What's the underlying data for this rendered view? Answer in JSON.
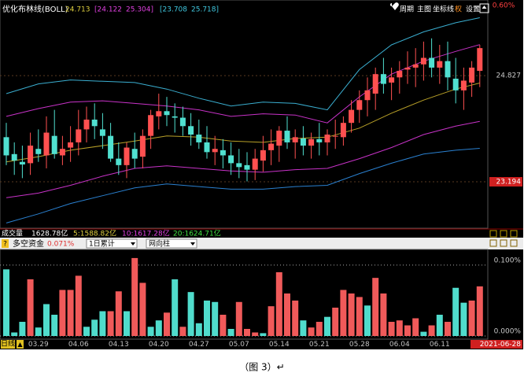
{
  "header": {
    "indicator": "优化布林线(BOLL)",
    "boll_values": [
      "24.713",
      "[24.122",
      "25.304]",
      "[23.708",
      "25.718]"
    ],
    "boll_colors": [
      "#e0d040",
      "#e040e0",
      "#e040e0",
      "#40c8e0",
      "#40c8e0"
    ],
    "menu": [
      "周期",
      "主图",
      "坐标线",
      "权",
      "设置"
    ],
    "top_label": "0.60%"
  },
  "price_chart": {
    "type": "candlestick",
    "ylim": [
      22.48,
      25.99
    ],
    "yticks": [
      24.827,
      23.194
    ],
    "ytick_colors": [
      "#c8c8c8",
      "#ffffff"
    ],
    "ytick_fills": [
      null,
      "#d02020"
    ],
    "up_color": "#ff5050",
    "down_color": "#50e0d0",
    "open": [
      23.88,
      23.62,
      23.5,
      23.48,
      23.7,
      23.6,
      23.9,
      23.6,
      23.72,
      23.8,
      24.0,
      24.15,
      24.0,
      23.9,
      23.55,
      23.45,
      23.7,
      23.58,
      23.9,
      24.2,
      24.28,
      24.2,
      24.18,
      24.05,
      23.92,
      23.8,
      23.65,
      23.68,
      23.6,
      23.48,
      23.45,
      23.38,
      23.52,
      23.68,
      23.75,
      23.98,
      23.8,
      23.86,
      23.75,
      23.85,
      23.8,
      23.9,
      23.88,
      24.1,
      24.3,
      24.45,
      24.55,
      24.85,
      24.72,
      24.8,
      24.92,
      24.95,
      25.0,
      25.1,
      24.95,
      25.05,
      24.78,
      24.6,
      24.72,
      24.9
    ],
    "high": [
      24.1,
      23.8,
      23.75,
      23.95,
      24.0,
      24.2,
      24.3,
      23.9,
      24.05,
      24.3,
      24.35,
      24.4,
      24.25,
      24.1,
      23.8,
      23.8,
      23.95,
      24.0,
      24.3,
      24.55,
      24.5,
      24.4,
      24.35,
      24.25,
      24.15,
      24.05,
      23.9,
      23.85,
      23.8,
      23.7,
      23.65,
      23.7,
      23.9,
      24.0,
      24.05,
      24.2,
      24.0,
      24.05,
      23.95,
      24.1,
      24.0,
      24.15,
      24.2,
      24.45,
      24.6,
      24.8,
      24.95,
      25.1,
      24.95,
      25.05,
      25.2,
      25.25,
      25.35,
      25.4,
      25.3,
      25.35,
      25.1,
      24.95,
      25.05,
      25.3
    ],
    "low": [
      23.45,
      23.3,
      23.25,
      23.3,
      23.5,
      23.4,
      23.55,
      23.45,
      23.5,
      23.6,
      23.8,
      23.85,
      23.7,
      23.5,
      23.3,
      23.25,
      23.4,
      23.4,
      23.7,
      24.0,
      24.05,
      23.95,
      23.9,
      23.75,
      23.7,
      23.55,
      23.45,
      23.4,
      23.3,
      23.25,
      23.2,
      23.22,
      23.35,
      23.45,
      23.5,
      23.7,
      23.55,
      23.6,
      23.55,
      23.6,
      23.6,
      23.7,
      23.75,
      23.95,
      24.1,
      24.2,
      24.3,
      24.55,
      24.45,
      24.55,
      24.7,
      24.65,
      24.75,
      24.8,
      24.7,
      24.6,
      24.4,
      24.3,
      24.5,
      24.65
    ],
    "close": [
      23.6,
      23.52,
      23.46,
      23.75,
      23.62,
      23.95,
      23.62,
      23.7,
      23.8,
      24.0,
      24.15,
      24.05,
      23.9,
      23.55,
      23.45,
      23.72,
      23.55,
      23.9,
      24.22,
      24.28,
      24.22,
      24.18,
      24.05,
      23.92,
      23.8,
      23.65,
      23.7,
      23.6,
      23.48,
      23.42,
      23.38,
      23.55,
      23.68,
      23.78,
      23.98,
      23.8,
      23.88,
      23.75,
      23.85,
      23.8,
      23.92,
      23.9,
      24.1,
      24.3,
      24.45,
      24.6,
      24.85,
      24.7,
      24.8,
      24.9,
      24.95,
      25.0,
      25.1,
      24.95,
      25.05,
      24.8,
      24.6,
      24.75,
      24.95,
      25.25
    ],
    "line_x": [
      0,
      4,
      8,
      12,
      16,
      20,
      24,
      28,
      32,
      36,
      40,
      44,
      48,
      52,
      56,
      59
    ],
    "lines": [
      {
        "color": "#b8a028",
        "values": [
          23.5,
          23.58,
          23.68,
          23.75,
          23.82,
          23.9,
          23.88,
          23.82,
          23.8,
          23.86,
          23.88,
          24.02,
          24.25,
          24.45,
          24.62,
          24.713
        ]
      },
      {
        "color": "#c832c8",
        "values": [
          24.2,
          24.32,
          24.42,
          24.44,
          24.4,
          24.36,
          24.3,
          24.2,
          24.24,
          24.22,
          24.1,
          24.5,
          24.85,
          25.05,
          25.2,
          25.304
        ]
      },
      {
        "color": "#c832c8",
        "values": [
          22.95,
          23.02,
          23.14,
          23.28,
          23.4,
          23.44,
          23.4,
          23.36,
          23.34,
          23.38,
          23.4,
          23.55,
          23.72,
          23.92,
          24.05,
          24.122
        ]
      },
      {
        "color": "#3aaed0",
        "values": [
          24.55,
          24.7,
          24.76,
          24.74,
          24.72,
          24.62,
          24.48,
          24.36,
          24.42,
          24.4,
          24.3,
          24.92,
          25.3,
          25.5,
          25.64,
          25.718
        ]
      },
      {
        "color": "#2a80d0",
        "values": [
          22.56,
          22.7,
          22.86,
          22.98,
          23.1,
          23.16,
          23.12,
          23.08,
          23.08,
          23.12,
          23.14,
          23.32,
          23.48,
          23.62,
          23.68,
          23.708
        ]
      }
    ]
  },
  "volume": {
    "texts": [
      "成交量",
      "1628.78亿",
      "5:1588.82亿",
      "10:1617.28亿",
      "20:1624.71亿"
    ],
    "colors": [
      "#ffffff",
      "#ffffff",
      "#e0d040",
      "#e040e0",
      "#40e040"
    ]
  },
  "flow_panel": {
    "type": "bar",
    "title": "多空资金",
    "value": "0.071%",
    "selects": [
      "1日累计",
      "网向柱"
    ],
    "ylim": [
      0,
      0.121
    ],
    "yticks": [
      {
        "value": 0.1,
        "label": "0.100%"
      },
      {
        "value": 0,
        "label": "0.000%"
      }
    ],
    "values": [
      0.094,
      0.005,
      0.02,
      0.08,
      0.012,
      0.045,
      0.03,
      0.065,
      0.065,
      0.085,
      0.013,
      0.023,
      0.035,
      0.035,
      0.063,
      0.035,
      0.11,
      0.075,
      0.013,
      0.022,
      0.033,
      0.08,
      0.013,
      0.062,
      0.018,
      0.05,
      0.048,
      0.03,
      0.01,
      0.048,
      0.01,
      0.005,
      0.004,
      0.042,
      0.09,
      0.06,
      0.05,
      0.022,
      0.012,
      0.02,
      0.027,
      0.04,
      0.065,
      0.06,
      0.055,
      0.043,
      0.082,
      0.06,
      0.02,
      0.022,
      0.015,
      0.025,
      0.006,
      0.015,
      0.03,
      0.02,
      0.068,
      0.047,
      0.05,
      0.07
    ],
    "colors": [
      "#50dccc",
      "#50dccc",
      "#50dccc",
      "#f05a5a",
      "#50dccc",
      "#50dccc",
      "#50dccc",
      "#f05a5a",
      "#f05a5a",
      "#f05a5a",
      "#50dccc",
      "#50dccc",
      "#50dccc",
      "#f05a5a",
      "#f05a5a",
      "#50dccc",
      "#f05a5a",
      "#f05a5a",
      "#50dccc",
      "#50dccc",
      "#f05a5a",
      "#50dccc",
      "#f05a5a",
      "#50dccc",
      "#50dccc",
      "#50dccc",
      "#50dccc",
      "#f05a5a",
      "#50dccc",
      "#f05a5a",
      "#f05a5a",
      "#f05a5a",
      "#50dccc",
      "#f05a5a",
      "#f05a5a",
      "#f05a5a",
      "#f05a5a",
      "#50dccc",
      "#f05a5a",
      "#f05a5a",
      "#50dccc",
      "#f05a5a",
      "#f05a5a",
      "#f05a5a",
      "#f05a5a",
      "#50dccc",
      "#f05a5a",
      "#f05a5a",
      "#f05a5a",
      "#f05a5a",
      "#f05a5a",
      "#f05a5a",
      "#50dccc",
      "#f05a5a",
      "#50dccc",
      "#f05a5a",
      "#50dccc",
      "#50dccc",
      "#f05a5a",
      "#f05a5a"
    ]
  },
  "x_axis": {
    "period": "日线",
    "categories": [
      null,
      null,
      null,
      null,
      "03.29",
      null,
      null,
      null,
      null,
      "04.06",
      null,
      null,
      null,
      null,
      "04.13",
      null,
      null,
      null,
      null,
      "04.20",
      null,
      null,
      null,
      null,
      "04.27",
      null,
      null,
      null,
      null,
      "05.07",
      null,
      null,
      null,
      null,
      "05.14",
      null,
      null,
      null,
      null,
      "05.21",
      null,
      null,
      null,
      null,
      "05.28",
      null,
      null,
      null,
      null,
      "06.04",
      null,
      null,
      null,
      null,
      "06.11",
      null,
      null,
      null,
      null,
      "2021-06-28"
    ]
  },
  "caption": "（图 3）↵"
}
